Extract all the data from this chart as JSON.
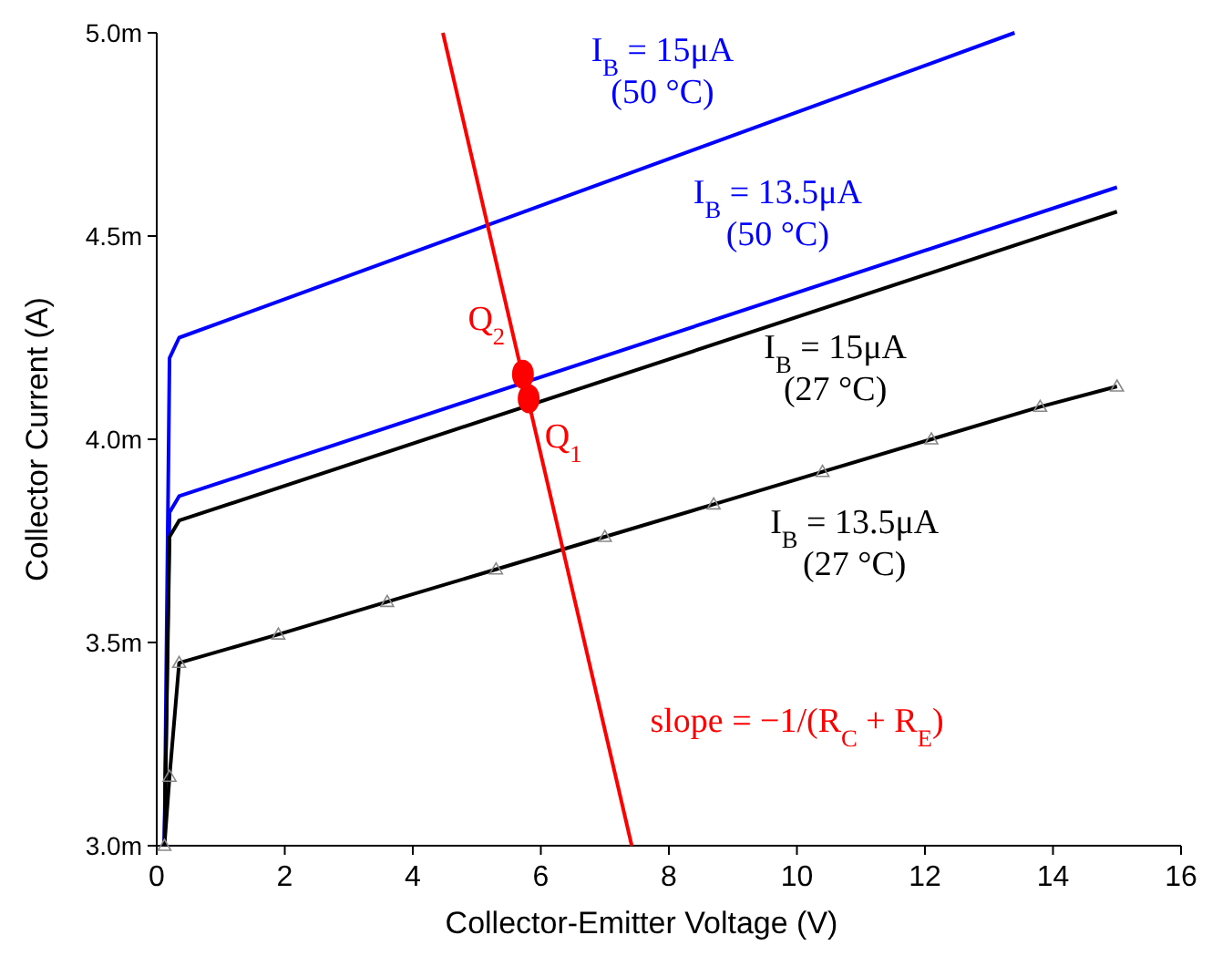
{
  "chart_data": {
    "type": "line",
    "xlabel": "Collector-Emitter Voltage (V)",
    "ylabel": "Collector Current (A)",
    "xlim": [
      0,
      16
    ],
    "xticks": [
      0,
      2,
      4,
      6,
      8,
      10,
      12,
      14,
      16
    ],
    "ylim": [
      3.0,
      5.0
    ],
    "yticks": [
      {
        "value": 3.0,
        "label": "3.0m"
      },
      {
        "value": 3.5,
        "label": "3.5m"
      },
      {
        "value": 4.0,
        "label": "4.0m"
      },
      {
        "value": 4.5,
        "label": "4.5m"
      },
      {
        "value": 5.0,
        "label": "5.0m"
      }
    ],
    "grid": false,
    "line_style": "solid",
    "series": [
      {
        "name": "I$_{B}$ = 15μA\n(50 °C)",
        "color": "#0000ff",
        "x": [
          0.12,
          0.2,
          0.35,
          13.4
        ],
        "values": [
          3.0,
          4.2,
          4.25,
          5.0
        ]
      },
      {
        "name": "I$_{B}$ = 13.5μA\n(50 °C)",
        "color": "#0000ff",
        "x": [
          0.12,
          0.2,
          0.35,
          15
        ],
        "values": [
          3.0,
          3.82,
          3.86,
          4.62
        ]
      },
      {
        "name": "I$_{B}$ = 15μA\n(27 °C)",
        "color": "#000000",
        "x": [
          0.12,
          0.2,
          0.35,
          15
        ],
        "values": [
          3.0,
          3.76,
          3.8,
          4.56
        ]
      },
      {
        "name": "I$_{B}$ = 13.5μA\n(27 °C)",
        "color": "#000000",
        "marker": "triangle",
        "x": [
          0.12,
          0.2,
          0.35,
          1.9,
          3.6,
          5.3,
          7.0,
          8.7,
          10.4,
          12.1,
          13.8,
          15
        ],
        "values": [
          3.0,
          3.17,
          3.45,
          3.52,
          3.6,
          3.68,
          3.76,
          3.84,
          3.92,
          4.0,
          4.08,
          4.13
        ]
      },
      {
        "name": "slope = −1/(R$_{C}$ + R$_{E}$)",
        "color": "#ff0000",
        "x": [
          4.47,
          7.42
        ],
        "values": [
          5.0,
          3.0
        ]
      },
      {
        "name": "Q$_{2}$",
        "type": "scatter",
        "color": "#ff0000",
        "marker": "circle",
        "x": [
          5.72
        ],
        "values": [
          4.16
        ]
      },
      {
        "name": "Q$_{1}$",
        "type": "scatter",
        "color": "#ff0000",
        "marker": "circle",
        "x": [
          5.81
        ],
        "values": [
          4.1
        ]
      }
    ]
  }
}
